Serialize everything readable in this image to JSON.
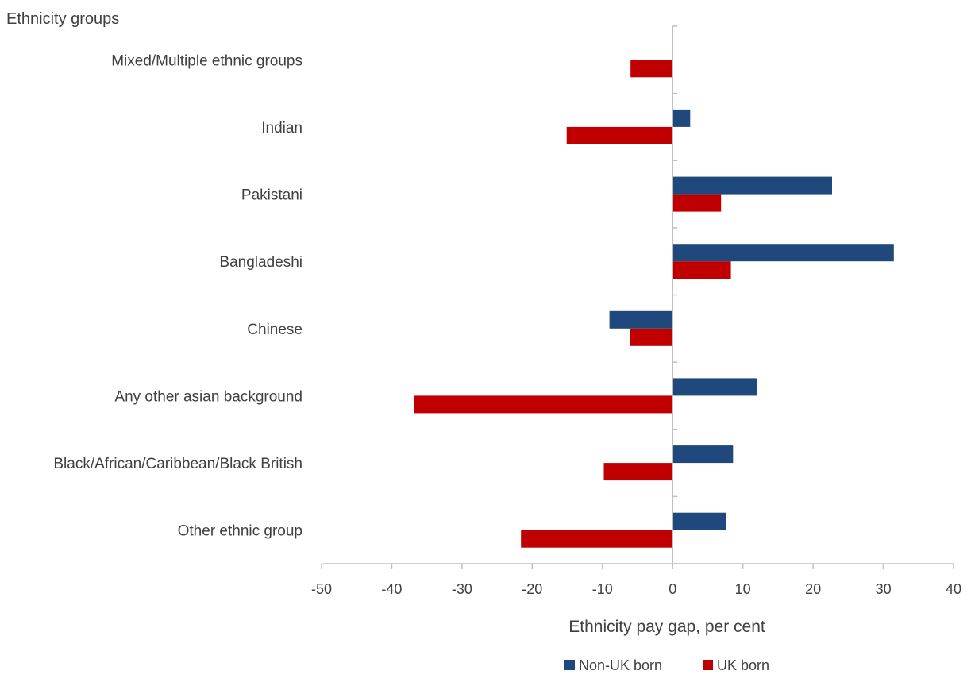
{
  "chart_data": {
    "type": "bar",
    "orientation": "horizontal",
    "categories": [
      "Mixed/Multiple ethnic groups",
      "Indian",
      "Pakistani",
      "Bangladeshi",
      "Chinese",
      "Any other asian background",
      "Black/African/Caribbean/Black British",
      "Other ethnic group"
    ],
    "series": [
      {
        "name": "Non-UK born",
        "color": "#1F497D",
        "values": [
          null,
          2.5,
          22.7,
          31.5,
          -9.0,
          12.0,
          8.6,
          7.6
        ]
      },
      {
        "name": "UK born",
        "color": "#C00000",
        "values": [
          -6.0,
          -15.1,
          6.9,
          8.3,
          -6.1,
          -36.8,
          -9.8,
          -21.6
        ]
      }
    ],
    "category_axis_title": "Ethnicity groups",
    "xlabel": "Ethnicity pay gap, per cent",
    "xlim": [
      -50,
      40
    ],
    "xticks": [
      -50,
      -40,
      -30,
      -20,
      -10,
      0,
      10,
      20,
      30,
      40
    ],
    "tick_labels": [
      "-50",
      "-40",
      "-30",
      "-20",
      "-10",
      "0",
      "10",
      "20",
      "30",
      "40"
    ],
    "grid": false,
    "legend_position": "bottom-right"
  }
}
